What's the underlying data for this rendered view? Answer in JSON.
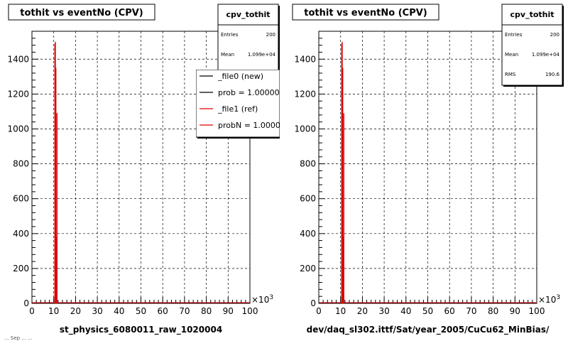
{
  "footer_text": "... Sep ... ...",
  "chart_data": [
    {
      "type": "histogram",
      "title": "tothit vs eventNo (CPV)",
      "xlabel": "st_physics_6080011_raw_1020004",
      "x_multiplier": "×10",
      "x_multiplier_exp": "3",
      "xlim": [
        0,
        100
      ],
      "ylim": [
        0,
        1560
      ],
      "x_ticks": [
        0,
        10,
        20,
        30,
        40,
        50,
        60,
        70,
        80,
        90,
        100
      ],
      "y_ticks": [
        0,
        200,
        400,
        600,
        800,
        1000,
        1200,
        1400
      ],
      "grid": true,
      "stats": {
        "name": "cpv_tothit",
        "rows": [
          {
            "label": "Entries",
            "value": "200"
          },
          {
            "label": "Mean",
            "value": "1.099e+04"
          }
        ]
      },
      "legend": {
        "placement": "top-right",
        "entries": [
          {
            "label": "_file0 (new)",
            "color": "#000000"
          },
          {
            "label": "prob = 1.000000",
            "color": "#000000"
          },
          {
            "label": "_file1 (ref)",
            "color": "#dd0000"
          },
          {
            "label": "probN = 1.000000",
            "color": "#dd0000"
          }
        ]
      },
      "series": [
        {
          "color": "#dd0000",
          "x": [
            10.5,
            10.75,
            11.0,
            11.25,
            11.5
          ],
          "values": [
            1490,
            1500,
            1350,
            380,
            1090
          ]
        }
      ]
    },
    {
      "type": "histogram",
      "title": "tothit vs eventNo (CPV)",
      "xlabel": "dev/daq_sl302.ittf/Sat/year_2005/CuCu62_MinBias/",
      "x_multiplier": "×10",
      "x_multiplier_exp": "3",
      "xlim": [
        0,
        100
      ],
      "ylim": [
        0,
        1560
      ],
      "x_ticks": [
        0,
        10,
        20,
        30,
        40,
        50,
        60,
        70,
        80,
        90,
        100
      ],
      "y_ticks": [
        0,
        200,
        400,
        600,
        800,
        1000,
        1200,
        1400
      ],
      "grid": true,
      "stats": {
        "name": "cpv_tothit",
        "rows": [
          {
            "label": "Entries",
            "value": "200"
          },
          {
            "label": "Mean",
            "value": "1.099e+04"
          },
          {
            "label": "RMS",
            "value": "190.6"
          }
        ]
      },
      "series": [
        {
          "color": "#dd0000",
          "x": [
            10.5,
            10.75,
            11.0,
            11.25,
            11.5
          ],
          "values": [
            1490,
            1500,
            1350,
            380,
            1090
          ]
        }
      ]
    }
  ]
}
